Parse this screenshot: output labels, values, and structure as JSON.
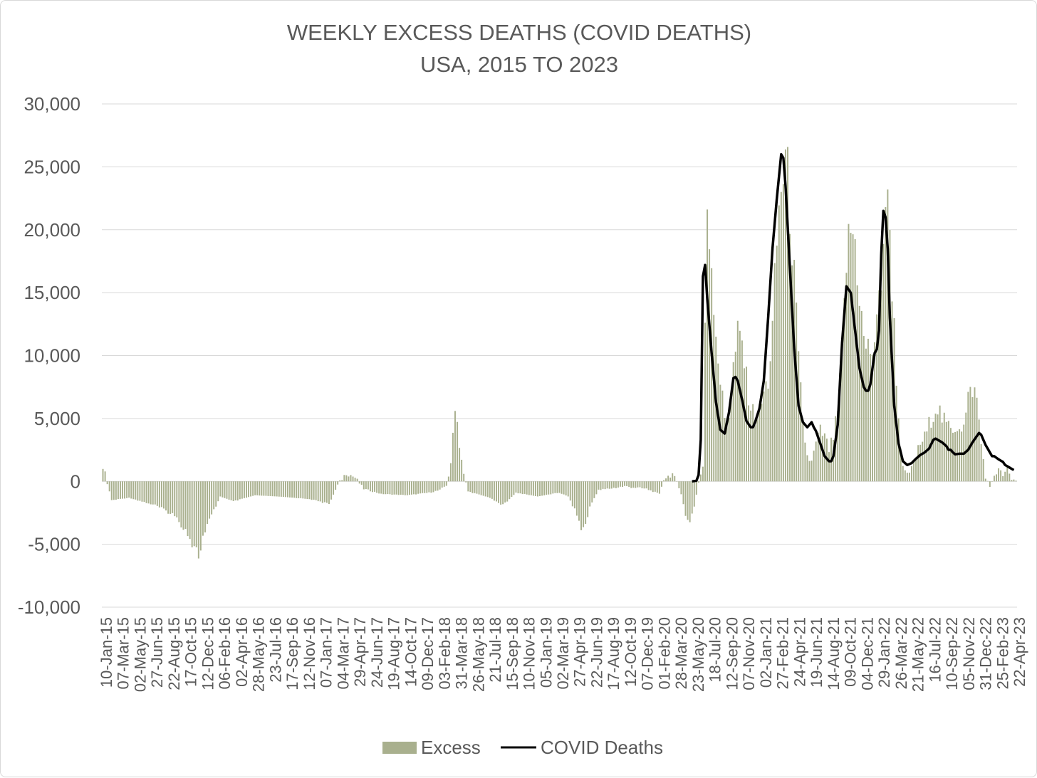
{
  "chart_data": {
    "type": "bar+line",
    "title": "WEEKLY EXCESS DEATHS (COVID DEATHS)",
    "subtitle": "USA, 2015 TO 2023",
    "ylim": [
      -10000,
      30000
    ],
    "y_ticks": [
      -10000,
      -5000,
      0,
      5000,
      10000,
      15000,
      20000,
      25000,
      30000
    ],
    "y_tick_labels": [
      "-10,000",
      "-5,000",
      "0",
      "5,000",
      "10,000",
      "15,000",
      "20,000",
      "25,000",
      "30,000"
    ],
    "x_tick_labels": [
      "10-Jan-15",
      "07-Mar-15",
      "02-May-15",
      "27-Jun-15",
      "22-Aug-15",
      "17-Oct-15",
      "12-Dec-15",
      "06-Feb-16",
      "02-Apr-16",
      "28-May-16",
      "23-Jul-16",
      "17-Sep-16",
      "12-Nov-16",
      "07-Jan-17",
      "04-Mar-17",
      "29-Apr-17",
      "24-Jun-17",
      "19-Aug-17",
      "14-Oct-17",
      "09-Dec-17",
      "03-Feb-18",
      "31-Mar-18",
      "26-May-18",
      "21-Jul-18",
      "15-Sep-18",
      "10-Nov-18",
      "05-Jan-19",
      "02-Mar-19",
      "27-Apr-19",
      "22-Jun-19",
      "17-Aug-19",
      "12-Oct-19",
      "07-Dec-19",
      "01-Feb-20",
      "28-Mar-20",
      "23-May-20",
      "18-Jul-20",
      "12-Sep-20",
      "07-Nov-20",
      "02-Jan-21",
      "27-Feb-21",
      "24-Apr-21",
      "19-Jun-21",
      "14-Aug-21",
      "09-Oct-21",
      "04-Dec-21",
      "29-Jan-22",
      "26-Mar-22",
      "21-May-22",
      "16-Jul-22",
      "10-Sep-22",
      "05-Nov-22",
      "31-Dec-22",
      "25-Feb-23",
      "22-Apr-23"
    ],
    "grid": true,
    "legend_position": "bottom",
    "series": [
      {
        "name": "Excess",
        "type": "bar",
        "color": "#a9b08e",
        "anchor_points": [
          [
            0,
            1300
          ],
          [
            4,
            -1500
          ],
          [
            12,
            -1300
          ],
          [
            24,
            -1900
          ],
          [
            32,
            -2600
          ],
          [
            38,
            -3800
          ],
          [
            42,
            -5200
          ],
          [
            44,
            -5900
          ],
          [
            46,
            -4500
          ],
          [
            50,
            -2700
          ],
          [
            54,
            -1200
          ],
          [
            60,
            -1600
          ],
          [
            70,
            -1100
          ],
          [
            80,
            -1200
          ],
          [
            95,
            -1400
          ],
          [
            104,
            -1800
          ],
          [
            108,
            -300
          ],
          [
            112,
            700
          ],
          [
            116,
            300
          ],
          [
            120,
            -600
          ],
          [
            128,
            -1000
          ],
          [
            140,
            -1100
          ],
          [
            150,
            -900
          ],
          [
            155,
            -700
          ],
          [
            158,
            -300
          ],
          [
            160,
            1200
          ],
          [
            162,
            6400
          ],
          [
            164,
            3000
          ],
          [
            166,
            500
          ],
          [
            168,
            -800
          ],
          [
            178,
            -1300
          ],
          [
            184,
            -1900
          ],
          [
            190,
            -900
          ],
          [
            200,
            -1200
          ],
          [
            210,
            -900
          ],
          [
            214,
            -1200
          ],
          [
            218,
            -2600
          ],
          [
            220,
            -3800
          ],
          [
            222,
            -3500
          ],
          [
            224,
            -2000
          ],
          [
            228,
            -700
          ],
          [
            240,
            -400
          ],
          [
            250,
            -600
          ],
          [
            256,
            -1000
          ],
          [
            258,
            200
          ],
          [
            262,
            600
          ],
          [
            264,
            -100
          ],
          [
            266,
            -1000
          ],
          [
            268,
            -2700
          ],
          [
            270,
            -3300
          ],
          [
            272,
            -2000
          ],
          [
            274,
            -100
          ],
          [
            276,
            1200
          ],
          [
            278,
            22000
          ],
          [
            280,
            17500
          ],
          [
            282,
            12000
          ],
          [
            284,
            8000
          ],
          [
            286,
            5000
          ],
          [
            288,
            5500
          ],
          [
            290,
            9000
          ],
          [
            292,
            11500
          ],
          [
            294,
            11000
          ],
          [
            296,
            8000
          ],
          [
            298,
            6000
          ],
          [
            300,
            5000
          ],
          [
            302,
            5500
          ],
          [
            304,
            7000
          ],
          [
            306,
            8000
          ],
          [
            308,
            12000
          ],
          [
            310,
            19000
          ],
          [
            312,
            23500
          ],
          [
            314,
            25500
          ],
          [
            316,
            22000
          ],
          [
            318,
            16000
          ],
          [
            320,
            9500
          ],
          [
            322,
            4500
          ],
          [
            324,
            2000
          ],
          [
            326,
            1500
          ],
          [
            328,
            3000
          ],
          [
            330,
            4000
          ],
          [
            332,
            3500
          ],
          [
            334,
            2500
          ],
          [
            336,
            3500
          ],
          [
            338,
            5500
          ],
          [
            340,
            10000
          ],
          [
            342,
            17500
          ],
          [
            344,
            20000
          ],
          [
            346,
            19000
          ],
          [
            348,
            15000
          ],
          [
            350,
            11000
          ],
          [
            352,
            10500
          ],
          [
            354,
            10500
          ],
          [
            356,
            12000
          ],
          [
            358,
            16500
          ],
          [
            360,
            22500
          ],
          [
            362,
            20000
          ],
          [
            364,
            12000
          ],
          [
            366,
            5000
          ],
          [
            368,
            1000
          ],
          [
            370,
            500
          ],
          [
            372,
            1000
          ],
          [
            374,
            2000
          ],
          [
            376,
            3000
          ],
          [
            378,
            3500
          ],
          [
            380,
            4500
          ],
          [
            382,
            5500
          ],
          [
            384,
            6000
          ],
          [
            386,
            5000
          ],
          [
            388,
            4500
          ],
          [
            390,
            4200
          ],
          [
            392,
            4300
          ],
          [
            394,
            4500
          ],
          [
            396,
            4300
          ],
          [
            398,
            6500
          ],
          [
            400,
            7500
          ],
          [
            402,
            6500
          ],
          [
            404,
            3000
          ],
          [
            406,
            400
          ],
          [
            408,
            -500
          ],
          [
            410,
            500
          ],
          [
            412,
            900
          ],
          [
            414,
            500
          ],
          [
            416,
            900
          ],
          [
            418,
            100
          ]
        ]
      },
      {
        "name": "COVID Deaths",
        "type": "line",
        "color": "#000000",
        "start_index": 271,
        "anchor_points": [
          [
            271,
            0
          ],
          [
            273,
            50
          ],
          [
            274,
            500
          ],
          [
            275,
            3300
          ],
          [
            276,
            16300
          ],
          [
            277,
            17200
          ],
          [
            278,
            14500
          ],
          [
            280,
            10200
          ],
          [
            282,
            6300
          ],
          [
            284,
            4100
          ],
          [
            286,
            3800
          ],
          [
            288,
            5500
          ],
          [
            290,
            8200
          ],
          [
            291,
            8300
          ],
          [
            292,
            8000
          ],
          [
            294,
            6500
          ],
          [
            296,
            4800
          ],
          [
            298,
            4300
          ],
          [
            299,
            4300
          ],
          [
            300,
            4700
          ],
          [
            302,
            5800
          ],
          [
            304,
            8000
          ],
          [
            306,
            13000
          ],
          [
            308,
            18500
          ],
          [
            310,
            22500
          ],
          [
            312,
            26000
          ],
          [
            313,
            25700
          ],
          [
            314,
            23500
          ],
          [
            316,
            17000
          ],
          [
            318,
            10500
          ],
          [
            320,
            6000
          ],
          [
            322,
            4700
          ],
          [
            324,
            4300
          ],
          [
            326,
            4700
          ],
          [
            327,
            4300
          ],
          [
            328,
            4000
          ],
          [
            330,
            3000
          ],
          [
            332,
            2000
          ],
          [
            334,
            1600
          ],
          [
            335,
            1600
          ],
          [
            336,
            2000
          ],
          [
            338,
            4500
          ],
          [
            340,
            11000
          ],
          [
            342,
            15500
          ],
          [
            344,
            15000
          ],
          [
            346,
            12000
          ],
          [
            348,
            9000
          ],
          [
            350,
            7500
          ],
          [
            351,
            7200
          ],
          [
            352,
            7200
          ],
          [
            353,
            7700
          ],
          [
            354,
            9000
          ],
          [
            355,
            10200
          ],
          [
            356,
            10500
          ],
          [
            357,
            12000
          ],
          [
            358,
            18000
          ],
          [
            359,
            21500
          ],
          [
            360,
            21000
          ],
          [
            361,
            18500
          ],
          [
            362,
            13000
          ],
          [
            364,
            6000
          ],
          [
            366,
            3000
          ],
          [
            368,
            1600
          ],
          [
            370,
            1300
          ],
          [
            372,
            1450
          ],
          [
            374,
            1800
          ],
          [
            376,
            2100
          ],
          [
            378,
            2300
          ],
          [
            380,
            2600
          ],
          [
            382,
            3300
          ],
          [
            383,
            3400
          ],
          [
            384,
            3300
          ],
          [
            386,
            3100
          ],
          [
            388,
            2800
          ],
          [
            389,
            2500
          ],
          [
            390,
            2500
          ],
          [
            391,
            2300
          ],
          [
            392,
            2150
          ],
          [
            394,
            2200
          ],
          [
            396,
            2200
          ],
          [
            398,
            2500
          ],
          [
            400,
            3100
          ],
          [
            402,
            3600
          ],
          [
            403,
            3850
          ],
          [
            404,
            3700
          ],
          [
            406,
            2900
          ],
          [
            408,
            2300
          ],
          [
            409,
            2000
          ],
          [
            410,
            2000
          ],
          [
            412,
            1750
          ],
          [
            414,
            1550
          ],
          [
            415,
            1300
          ],
          [
            417,
            1100
          ],
          [
            419,
            900
          ]
        ]
      }
    ]
  }
}
